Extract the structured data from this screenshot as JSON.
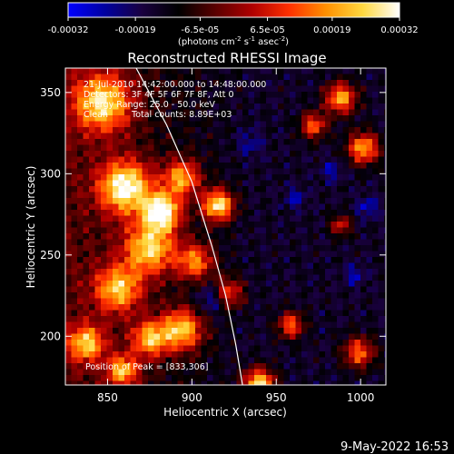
{
  "colorbar": {
    "tick_labels": [
      "-0.00032",
      "-0.00019",
      "-6.5e-05",
      "6.5e-05",
      "0.00019",
      "0.00032"
    ],
    "tick_values": [
      -0.00032,
      -0.00019,
      -6.5e-05,
      6.5e-05,
      0.00019,
      0.00032
    ],
    "range": [
      -0.00032,
      0.00032
    ],
    "unit_main": "(photons cm",
    "unit_exp1": "-2",
    "unit_mid1": " s",
    "unit_exp2": "-1",
    "unit_mid2": " asec",
    "unit_exp3": "-2",
    "unit_end": ")",
    "colors": [
      "#0000ff",
      "#0000a0",
      "#1a0040",
      "#000000",
      "#5a0000",
      "#b00000",
      "#ff3000",
      "#ff9000",
      "#ffd840",
      "#ffffff"
    ]
  },
  "chart_data": {
    "type": "heatmap",
    "title": "Reconstructed RHESSI Image",
    "xlabel": "Heliocentric X (arcsec)",
    "ylabel": "Heliocentric Y (arcsec)",
    "xlim": [
      825,
      1015
    ],
    "ylim": [
      170,
      365
    ],
    "x_ticks": [
      850,
      900,
      950,
      1000
    ],
    "y_ticks": [
      200,
      250,
      300,
      350
    ],
    "x_tick_labels": [
      "850",
      "900",
      "950",
      "1000"
    ],
    "y_tick_labels": [
      "200",
      "250",
      "300",
      "350"
    ],
    "limb": [
      [
        867,
        365
      ],
      [
        885,
        330
      ],
      [
        900,
        295
      ],
      [
        912,
        255
      ],
      [
        920,
        225
      ],
      [
        926,
        195
      ],
      [
        930,
        170
      ]
    ],
    "peak_position": [
      833,
      306
    ],
    "annotations": {
      "time": "21-Jul-2010 14:42:00.000 to 14:48:00.000",
      "detectors": "Detectors: 3F 4F 5F 6F 7F 8F, Att 0",
      "energy": "Energy Range: 25.0 - 50.0 keV",
      "method": "Clean",
      "counts": "Total counts: 8.89E+03",
      "peak": "Position of Peak = [833,306]"
    }
  },
  "footer": {
    "timestamp": "9-May-2022 16:53"
  }
}
